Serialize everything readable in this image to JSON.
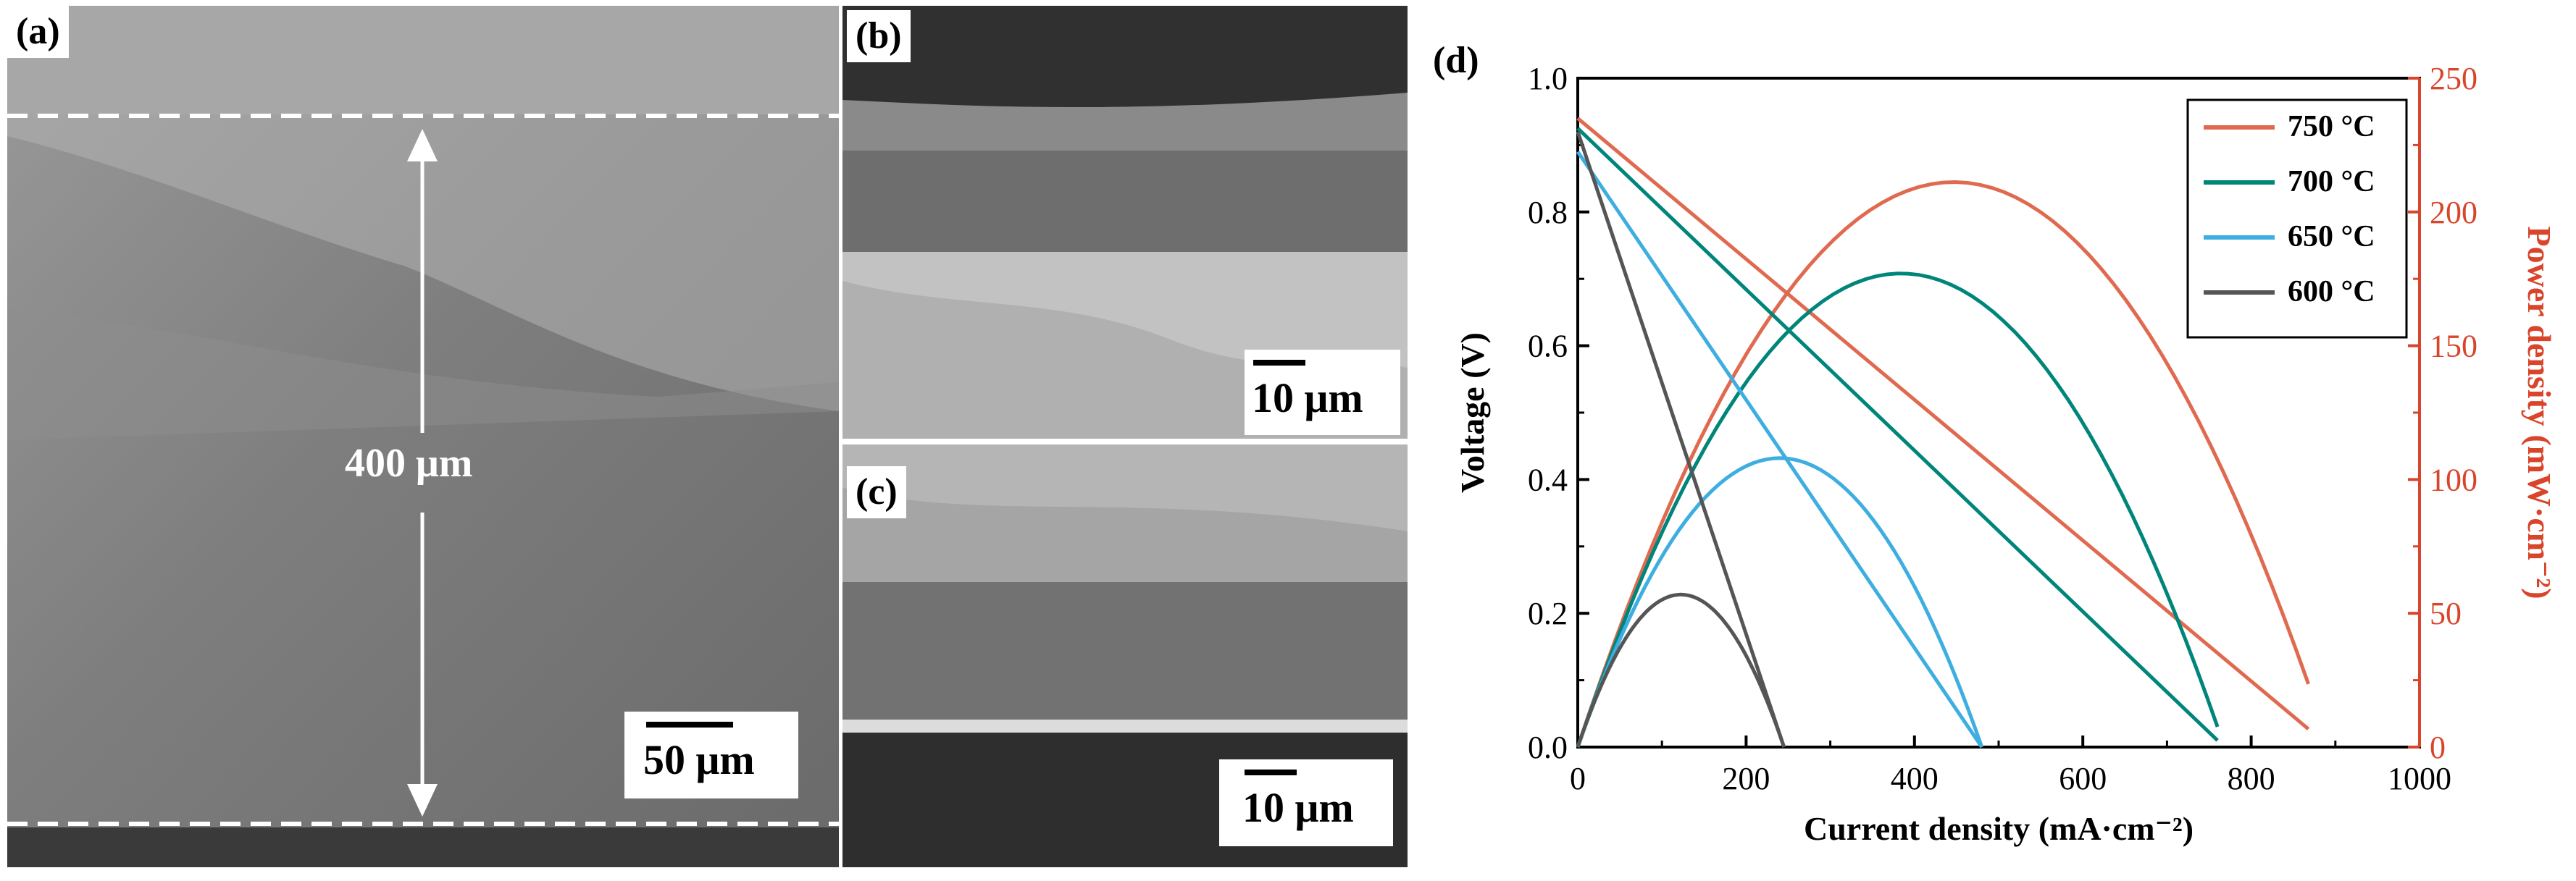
{
  "figure": {
    "panel_a": {
      "label": "(a)",
      "dimension_label": "400 μm",
      "scale_bar": "50 μm"
    },
    "panel_b": {
      "label": "(b)",
      "scale_bar": "10 μm"
    },
    "panel_c": {
      "label": "(c)",
      "scale_bar": "10 μm"
    },
    "panel_d": {
      "label": "(d)"
    }
  },
  "colors": {
    "c750": "#e06a4f",
    "c700": "#00857a",
    "c650": "#3eaee0",
    "c600": "#555555",
    "axis": "#000000",
    "power_axis": "#d9452b"
  },
  "chart_data": {
    "type": "line",
    "title": "",
    "xlabel": "Current density (mA·cm⁻²)",
    "ylabel": "Voltage (V)",
    "y2label": "Power density (mW·cm⁻²)",
    "xlim": [
      0,
      1000
    ],
    "ylim": [
      0,
      1.0
    ],
    "y2lim": [
      0,
      250
    ],
    "xticks": [
      "0",
      "200",
      "400",
      "600",
      "800",
      "1000"
    ],
    "yticks": [
      "0.0",
      "0.2",
      "0.4",
      "0.6",
      "0.8",
      "1.0"
    ],
    "y2ticks": [
      "0",
      "50",
      "100",
      "150",
      "200",
      "250"
    ],
    "legend": {
      "position": "top-right",
      "entries": [
        "750 °C",
        "700 °C",
        "650 °C",
        "600 °C"
      ]
    },
    "series": [
      {
        "name": "750 °C",
        "color_key": "c750",
        "ocv": 0.94,
        "i_max": 868,
        "v_end": 0.027,
        "pmax": 211,
        "p_end": 24
      },
      {
        "name": "700 °C",
        "color_key": "c700",
        "ocv": 0.925,
        "i_max": 760,
        "v_end": 0.01,
        "pmax": 177,
        "p_end": 7
      },
      {
        "name": "650 °C",
        "color_key": "c650",
        "ocv": 0.89,
        "i_max": 480,
        "v_end": 0.0,
        "pmax": 108,
        "p_end": 0
      },
      {
        "name": "600 °C",
        "color_key": "c600",
        "ocv": 0.92,
        "i_max": 245,
        "v_end": 0.0,
        "pmax": 57,
        "p_end": 0
      }
    ]
  }
}
